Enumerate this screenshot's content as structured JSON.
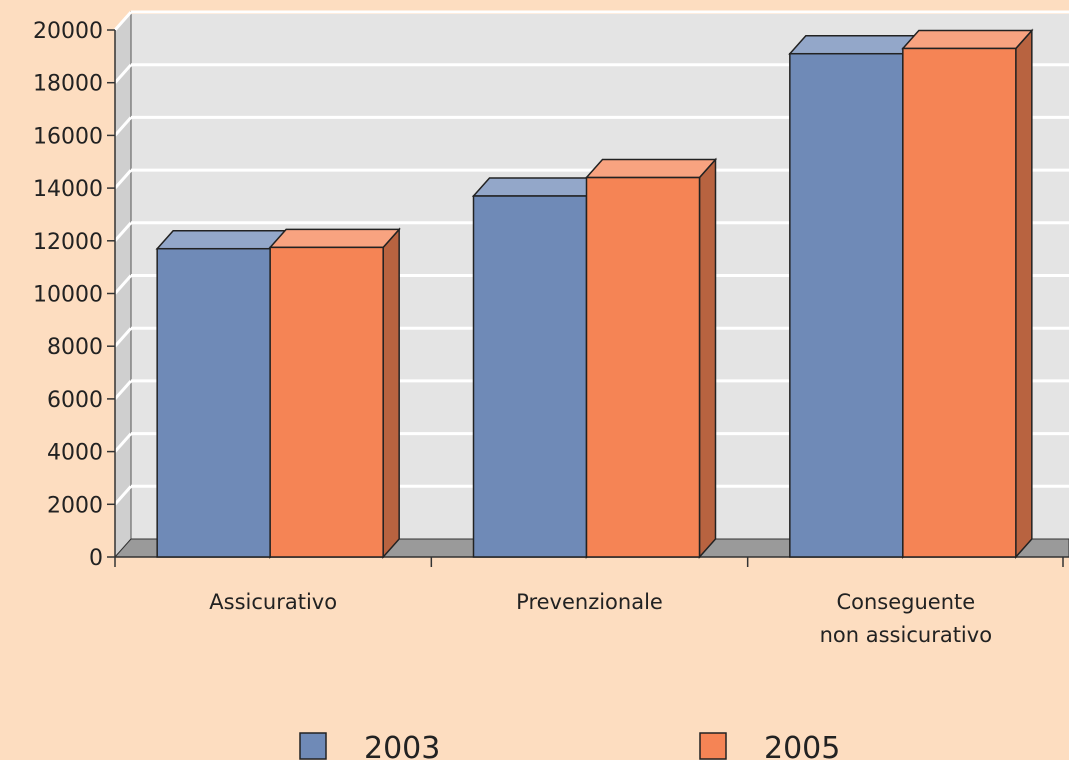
{
  "chart_data": {
    "type": "bar",
    "categories": [
      [
        "Assicurativo"
      ],
      [
        "Prevenzionale"
      ],
      [
        "Conseguente",
        "non assicurativo"
      ]
    ],
    "series": [
      {
        "name": "2003",
        "values": [
          11700,
          13700,
          19100
        ],
        "color": "#6F8AB7"
      },
      {
        "name": "2005",
        "values": [
          11750,
          14400,
          19300
        ],
        "color": "#F58455"
      }
    ],
    "ylim": [
      0,
      20000
    ],
    "yticks": [
      "0",
      "2000",
      "4000",
      "6000",
      "8000",
      "10000",
      "12000",
      "14000",
      "16000",
      "18000",
      "20000"
    ],
    "grid": true,
    "three_d": true,
    "legend": "bottom"
  }
}
